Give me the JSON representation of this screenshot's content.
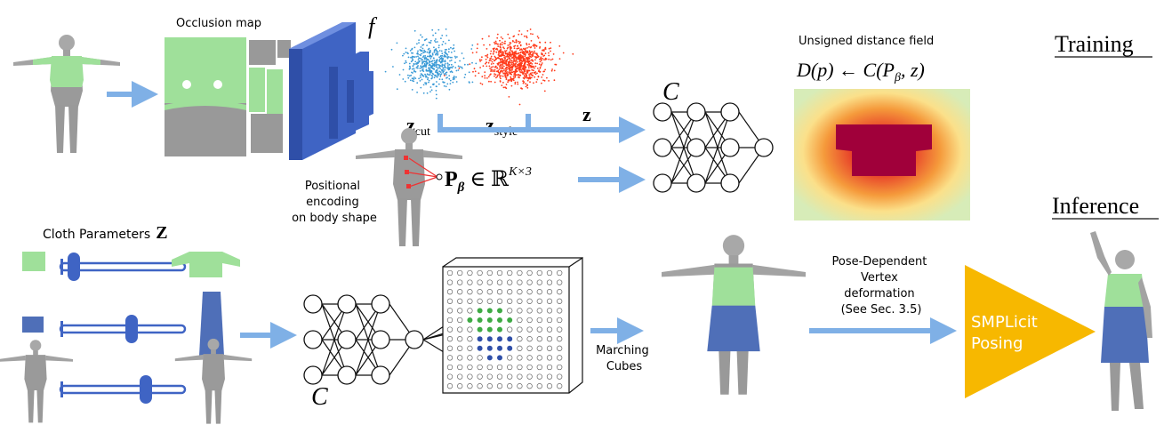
{
  "sections": {
    "training": "Training",
    "inference": "Inference"
  },
  "labels": {
    "occlusion_map": "Occlusion map",
    "f": "f",
    "z_cut": "z",
    "z_cut_sub": "cut",
    "z_style": "z",
    "z_style_sub": "style",
    "z": "z",
    "c_top": "C",
    "c_bottom": "C",
    "udf": "Unsigned distance field",
    "udf_formula": "D(p) ← C(P",
    "udf_formula_sub": "β",
    "udf_formula_end": ", z)",
    "pos_enc_1": "Positional",
    "pos_enc_2": "encoding",
    "pos_enc_3": "on body shape",
    "p_beta": "P",
    "p_beta_sub": "β",
    "p_beta_rest": " ∈ ℝ",
    "p_beta_sup": "K×3",
    "cloth_params": "Cloth Parameters",
    "cloth_params_z": "Z",
    "marching_1": "Marching",
    "marching_2": "Cubes",
    "pose_dep_1": "Pose-Dependent",
    "pose_dep_2": "Vertex",
    "pose_dep_3": "deformation",
    "pose_dep_4": "(See Sec. 3.5)",
    "smplicit_1": "SMPLicit",
    "smplicit_2": "Posing"
  },
  "colors": {
    "arrow": "#7fb0e6",
    "garment_green": "#9fe09a",
    "garment_blue": "#4f6fb8",
    "body_gray": "#9a9a9a",
    "encoder_blue": "#3f64c4",
    "scatter_cut": "#3a9ad6",
    "scatter_style": "#ff3a1a",
    "smplicit_gold": "#f7b800",
    "heat_inner": "#a0003a"
  },
  "icons": {
    "body": "human-body-icon",
    "network": "neural-network-icon",
    "grid": "voxel-grid-icon",
    "slider": "slider-icon"
  }
}
